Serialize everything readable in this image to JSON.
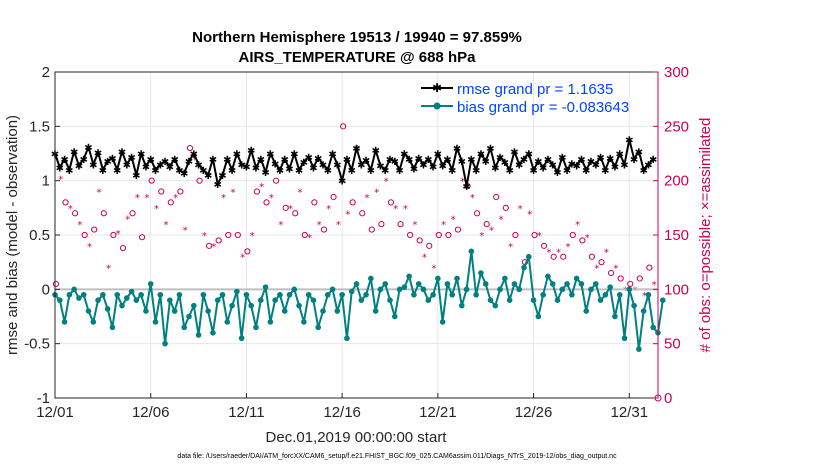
{
  "chart_data": {
    "type": "line",
    "title": "Northern Hemisphere 19513 / 19940 = 97.859%",
    "subtitle": "AIRS_TEMPERATURE @ 688 hPa",
    "xlabel": "Dec.01,2019 00:00:00 start",
    "ylabel": "rmse and bias (model - observation)",
    "ylabel_right": "# of obs: o=possible; ×=assimilated",
    "xlim": [
      0,
      31.5
    ],
    "ylim": [
      -1,
      2
    ],
    "ylim_right": [
      0,
      300
    ],
    "x_tick_labels": [
      "12/01",
      "12/06",
      "12/11",
      "12/16",
      "12/21",
      "12/26",
      "12/31"
    ],
    "x_tick_values": [
      0,
      5,
      10,
      15,
      20,
      25,
      30
    ],
    "y_ticks": [
      "-1",
      "-0.5",
      "0",
      "0.5",
      "1",
      "1.5",
      "2"
    ],
    "y_ticks_right": [
      "0",
      "50",
      "100",
      "150",
      "200",
      "250",
      "300"
    ],
    "grid": true,
    "legend_position": "top-right",
    "zero_line": 0,
    "x_step_days": 0.25,
    "series": [
      {
        "name": "rmse grand pr = 1.1635",
        "color": "#000000",
        "marker": "star",
        "values": [
          1.25,
          1.12,
          1.2,
          1.1,
          1.27,
          1.14,
          1.2,
          1.31,
          1.15,
          1.26,
          1.1,
          1.18,
          1.21,
          1.1,
          1.27,
          1.15,
          1.22,
          1.05,
          1.25,
          1.13,
          1.2,
          1.1,
          1.15,
          1.18,
          1.13,
          1.2,
          1.1,
          1.07,
          1.18,
          1.25,
          1.15,
          1.1,
          1.05,
          1.2,
          0.97,
          1.05,
          1.2,
          1.1,
          1.25,
          1.15,
          1.13,
          1.28,
          1.12,
          1.2,
          1.08,
          1.25,
          1.16,
          1.1,
          1.2,
          1.11,
          1.25,
          1.1,
          1.17,
          1.22,
          1.12,
          1.21,
          1.15,
          1.1,
          1.25,
          1.15,
          1.0,
          1.2,
          1.1,
          1.3,
          1.15,
          1.19,
          1.1,
          1.28,
          1.14,
          1.1,
          1.2,
          1.18,
          1.1,
          1.25,
          1.2,
          1.11,
          1.21,
          1.15,
          1.2,
          1.13,
          1.25,
          1.14,
          1.2,
          1.1,
          1.3,
          1.18,
          0.95,
          1.2,
          1.1,
          1.25,
          1.18,
          1.3,
          1.12,
          1.22,
          1.17,
          1.1,
          1.27,
          1.15,
          1.2,
          1.25,
          1.1,
          1.18,
          1.12,
          1.2,
          1.15,
          1.08,
          1.22,
          1.1,
          1.16,
          1.14,
          1.2,
          1.1,
          1.18,
          1.15,
          1.22,
          1.1,
          1.21,
          1.13,
          1.25,
          1.15,
          1.38,
          1.2,
          1.27,
          1.1,
          1.15,
          1.2
        ]
      },
      {
        "name": "bias grand pr = -0.083643",
        "color": "#008080",
        "marker": "circle",
        "values": [
          -0.05,
          -0.1,
          -0.3,
          -0.05,
          0.0,
          -0.08,
          -0.05,
          -0.2,
          -0.3,
          -0.1,
          -0.05,
          -0.18,
          -0.35,
          -0.05,
          -0.15,
          -0.08,
          -0.02,
          -0.1,
          -0.05,
          -0.2,
          0.05,
          -0.3,
          -0.05,
          -0.5,
          -0.1,
          -0.2,
          -0.05,
          -0.35,
          -0.25,
          -0.15,
          -0.42,
          -0.05,
          -0.2,
          -0.4,
          -0.1,
          -0.05,
          -0.3,
          -0.15,
          -0.02,
          -0.45,
          -0.05,
          -0.15,
          -0.35,
          -0.1,
          0.02,
          -0.3,
          -0.1,
          -0.05,
          -0.2,
          -0.05,
          0.0,
          -0.15,
          -0.3,
          -0.05,
          -0.1,
          -0.35,
          -0.2,
          -0.05,
          0.0,
          -0.2,
          -0.05,
          -0.45,
          -0.02,
          0.05,
          -0.1,
          -0.05,
          0.1,
          -0.2,
          0.0,
          0.05,
          -0.1,
          -0.25,
          0.0,
          0.02,
          0.12,
          -0.05,
          0.05,
          0.0,
          -0.1,
          -0.05,
          0.1,
          -0.3,
          0.05,
          -0.05,
          0.1,
          -0.15,
          0.0,
          0.35,
          -0.05,
          0.15,
          0.05,
          -0.1,
          -0.15,
          0.0,
          0.1,
          -0.1,
          0.05,
          0.0,
          0.2,
          0.3,
          -0.1,
          -0.25,
          -0.05,
          0.12,
          0.05,
          -0.1,
          0.0,
          0.05,
          -0.05,
          0.1,
          0.05,
          -0.2,
          0.0,
          0.05,
          -0.1,
          -0.05,
          0.02,
          -0.25,
          -0.05,
          -0.45,
          0.0,
          -0.15,
          -0.55,
          -0.2,
          -0.05,
          -0.35,
          -0.4,
          -0.1
        ]
      }
    ],
    "obs_possible": [
      105,
      202,
      180,
      175,
      170,
      160,
      150,
      140,
      155,
      190,
      170,
      120,
      150,
      152,
      138,
      165,
      170,
      185,
      148,
      185,
      200,
      175,
      190,
      160,
      180,
      185,
      190,
      155,
      230,
      220,
      200,
      150,
      140,
      140,
      145,
      185,
      150,
      190,
      150,
      130,
      135,
      150,
      190,
      195,
      180,
      185,
      200,
      160,
      175,
      175,
      170,
      190,
      150,
      148,
      180,
      160,
      155,
      175,
      185,
      160,
      250,
      170,
      180,
      230,
      170,
      185,
      155,
      190,
      160,
      200,
      180,
      175,
      160,
      175,
      150,
      160,
      145,
      130,
      140,
      120,
      150,
      160,
      150,
      165,
      155,
      200,
      195,
      185,
      170,
      150,
      160,
      155,
      185,
      165,
      175,
      140,
      150,
      175,
      125,
      170,
      150,
      150,
      140,
      135,
      130,
      135,
      130,
      140,
      150,
      160,
      145,
      148,
      130,
      120,
      125,
      135,
      115,
      120,
      110,
      100,
      105,
      100,
      110,
      95,
      120,
      105
    ]
  },
  "legend": {
    "rmse": "rmse grand pr = 1.1635",
    "bias": "bias grand pr = -0.083643"
  },
  "footer": "data file: /Users/raeder/DAI/ATM_forcXX/CAM6_setup/f.e21.FHIST_BGC.f09_025.CAM6assim.011/Diags_NTrS_2019-12/obs_diag_output.nc",
  "colors": {
    "rmse": "#000000",
    "bias": "#008080",
    "obs": "#cc0055",
    "zero_line": "#bfbfbf"
  }
}
